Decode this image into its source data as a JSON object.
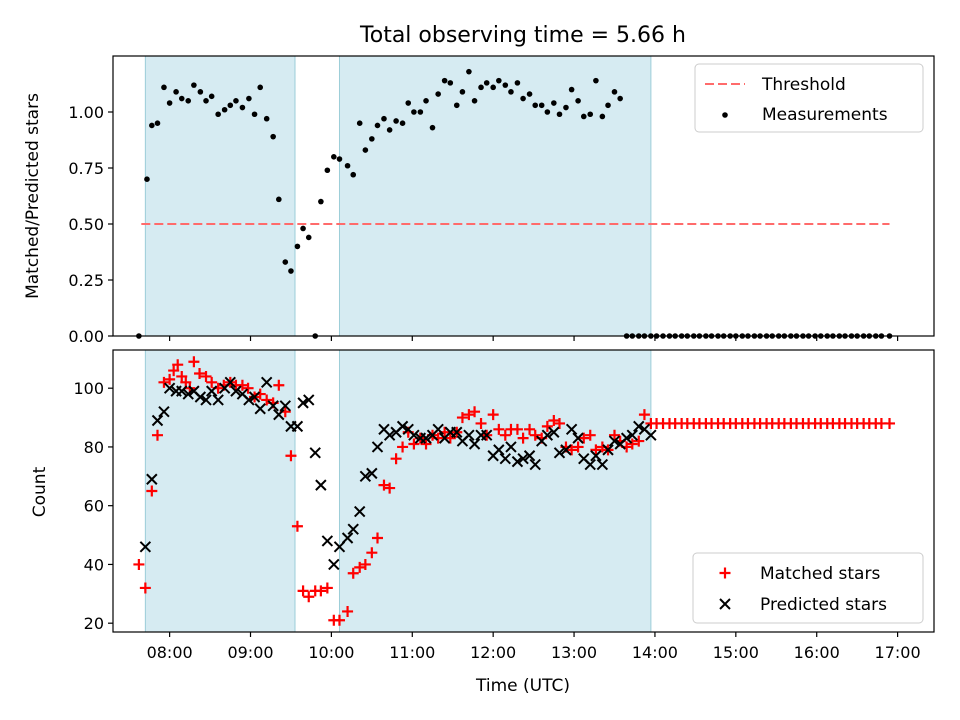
{
  "title": "Total observing time = 5.66 h",
  "chart_data": [
    {
      "type": "scatter",
      "panel": "top",
      "ylabel": "Matched/Predicted stars",
      "ylim": [
        0,
        1.25
      ],
      "yticks": [
        "0.00",
        "0.25",
        "0.50",
        "0.75",
        "1.00"
      ],
      "xlim": [
        7.3,
        17.45
      ],
      "shaded_intervals": [
        [
          7.7,
          9.55
        ],
        [
          10.1,
          13.95
        ]
      ],
      "threshold": {
        "name": "Threshold",
        "y": 0.5,
        "x": [
          7.65,
          16.9
        ],
        "color": "#ff6b6b"
      },
      "series": [
        {
          "name": "Measurements",
          "color": "#000000",
          "x": [
            7.62,
            7.72,
            7.78,
            7.85,
            7.93,
            8.0,
            8.08,
            8.15,
            8.23,
            8.3,
            8.38,
            8.45,
            8.52,
            8.6,
            8.68,
            8.75,
            8.82,
            8.9,
            8.98,
            9.05,
            9.12,
            9.2,
            9.28,
            9.35,
            9.43,
            9.5,
            9.58,
            9.65,
            9.72,
            9.8,
            9.87,
            9.95,
            10.03,
            10.1,
            10.2,
            10.27,
            10.35,
            10.42,
            10.5,
            10.57,
            10.65,
            10.72,
            10.8,
            10.88,
            10.95,
            11.02,
            11.1,
            11.17,
            11.25,
            11.32,
            11.4,
            11.47,
            11.55,
            11.62,
            11.7,
            11.77,
            11.85,
            11.92,
            12.0,
            12.07,
            12.15,
            12.22,
            12.3,
            12.37,
            12.45,
            12.52,
            12.6,
            12.67,
            12.75,
            12.82,
            12.9,
            12.97,
            13.05,
            13.12,
            13.2,
            13.27,
            13.35,
            13.42,
            13.5,
            13.57,
            13.65,
            13.72,
            13.8,
            13.87,
            13.95,
            14.02,
            14.1,
            14.18,
            14.25,
            14.33,
            14.4,
            14.48,
            14.55,
            14.63,
            14.7,
            14.78,
            14.85,
            14.93,
            15.0,
            15.08,
            15.15,
            15.23,
            15.3,
            15.38,
            15.45,
            15.53,
            15.6,
            15.68,
            15.75,
            15.83,
            15.9,
            15.98,
            16.05,
            16.13,
            16.2,
            16.28,
            16.35,
            16.43,
            16.5,
            16.58,
            16.65,
            16.73,
            16.8,
            16.9
          ],
          "y": [
            0.0,
            0.7,
            0.94,
            0.95,
            1.11,
            1.04,
            1.09,
            1.06,
            1.05,
            1.12,
            1.09,
            1.05,
            1.07,
            0.99,
            1.01,
            1.03,
            1.05,
            1.02,
            1.06,
            0.99,
            1.11,
            0.97,
            0.89,
            0.61,
            0.33,
            0.29,
            0.4,
            0.48,
            0.44,
            0.0,
            0.6,
            0.74,
            0.8,
            0.79,
            0.76,
            0.72,
            0.95,
            0.83,
            0.88,
            0.94,
            0.97,
            0.92,
            0.96,
            0.95,
            1.04,
            1.0,
            1.0,
            1.05,
            0.93,
            1.08,
            1.14,
            1.13,
            1.03,
            1.09,
            1.18,
            1.05,
            1.11,
            1.13,
            1.11,
            1.14,
            1.12,
            1.09,
            1.13,
            1.06,
            1.08,
            1.03,
            1.03,
            1.0,
            1.04,
            0.99,
            1.02,
            1.1,
            1.05,
            0.98,
            0.99,
            1.14,
            0.98,
            1.03,
            1.09,
            1.06,
            0.0,
            0.0,
            0.0,
            0.0,
            0.0,
            0.0,
            0.0,
            0.0,
            0.0,
            0.0,
            0.0,
            0.0,
            0.0,
            0.0,
            0.0,
            0.0,
            0.0,
            0.0,
            0.0,
            0.0,
            0.0,
            0.0,
            0.0,
            0.0,
            0.0,
            0.0,
            0.0,
            0.0,
            0.0,
            0.0,
            0.0,
            0.0,
            0.0,
            0.0,
            0.0,
            0.0,
            0.0,
            0.0,
            0.0,
            0.0,
            0.0,
            0.0,
            0.0,
            0.0
          ]
        }
      ],
      "legend": {
        "position": "top-right",
        "entries": [
          "Threshold",
          "Measurements"
        ]
      }
    },
    {
      "type": "scatter",
      "panel": "bottom",
      "ylabel": "Count",
      "xlabel": "Time (UTC)",
      "ylim": [
        17,
        113
      ],
      "yticks": [
        "20",
        "40",
        "60",
        "80",
        "100"
      ],
      "xlim": [
        7.3,
        17.45
      ],
      "xticks": [
        "08:00",
        "09:00",
        "10:00",
        "11:00",
        "12:00",
        "13:00",
        "14:00",
        "15:00",
        "16:00",
        "17:00"
      ],
      "shaded_intervals": [
        [
          7.7,
          9.55
        ],
        [
          10.1,
          13.95
        ]
      ],
      "series": [
        {
          "name": "Matched stars",
          "color": "#ff0000",
          "marker": "plus",
          "x": [
            7.62,
            7.7,
            7.78,
            7.85,
            7.93,
            8.0,
            8.05,
            8.1,
            8.15,
            8.2,
            8.25,
            8.3,
            8.37,
            8.45,
            8.52,
            8.6,
            8.67,
            8.75,
            8.82,
            8.9,
            8.97,
            9.05,
            9.12,
            9.2,
            9.28,
            9.35,
            9.43,
            9.5,
            9.58,
            9.65,
            9.72,
            9.8,
            9.87,
            9.95,
            10.03,
            10.1,
            10.2,
            10.27,
            10.35,
            10.42,
            10.5,
            10.57,
            10.65,
            10.72,
            10.8,
            10.88,
            10.95,
            11.02,
            11.1,
            11.17,
            11.25,
            11.32,
            11.4,
            11.47,
            11.55,
            11.62,
            11.7,
            11.77,
            11.85,
            11.92,
            12.0,
            12.07,
            12.15,
            12.22,
            12.3,
            12.37,
            12.45,
            12.52,
            12.6,
            12.67,
            12.75,
            12.82,
            12.9,
            12.97,
            13.05,
            13.12,
            13.2,
            13.27,
            13.35,
            13.42,
            13.5,
            13.57,
            13.65,
            13.72,
            13.8,
            13.87,
            13.95,
            14.02,
            14.1,
            14.18,
            14.25,
            14.33,
            14.4,
            14.48,
            14.55,
            14.63,
            14.7,
            14.78,
            14.85,
            14.93,
            15.0,
            15.08,
            15.15,
            15.23,
            15.3,
            15.38,
            15.45,
            15.53,
            15.6,
            15.68,
            15.75,
            15.83,
            15.9,
            15.98,
            16.05,
            16.13,
            16.2,
            16.28,
            16.35,
            16.43,
            16.5,
            16.58,
            16.65,
            16.73,
            16.8,
            16.9
          ],
          "y": [
            40,
            32,
            65,
            84,
            102,
            103,
            106,
            108,
            104,
            102,
            100,
            109,
            105,
            104,
            102,
            100,
            101,
            102,
            101,
            101,
            100,
            97,
            98,
            96,
            95,
            101,
            92,
            77,
            53,
            31,
            29,
            31,
            31,
            32,
            21,
            21,
            24,
            37,
            39,
            40,
            44,
            49,
            67,
            66,
            76,
            80,
            85,
            81,
            83,
            81,
            84,
            83,
            85,
            83,
            85,
            90,
            91,
            92,
            88,
            84,
            91,
            86,
            84,
            86,
            86,
            83,
            86,
            84,
            83,
            87,
            89,
            88,
            80,
            79,
            80,
            83,
            84,
            79,
            80,
            79,
            84,
            82,
            80,
            81,
            82,
            91,
            88,
            88,
            88,
            88,
            88,
            88,
            88,
            88,
            88,
            88,
            88,
            88,
            88,
            88,
            88,
            88,
            88,
            88,
            88,
            88,
            88,
            88,
            88,
            88,
            88,
            88,
            88,
            88,
            88,
            88,
            88,
            88,
            88,
            88,
            88,
            88,
            88,
            88,
            88,
            88
          ]
        },
        {
          "name": "Predicted stars",
          "color": "#000000",
          "marker": "x",
          "x": [
            7.7,
            7.78,
            7.85,
            7.93,
            8.0,
            8.08,
            8.15,
            8.23,
            8.3,
            8.38,
            8.45,
            8.52,
            8.6,
            8.68,
            8.75,
            8.82,
            8.9,
            8.98,
            9.05,
            9.12,
            9.2,
            9.28,
            9.35,
            9.43,
            9.5,
            9.58,
            9.65,
            9.72,
            9.8,
            9.87,
            9.95,
            10.03,
            10.1,
            10.2,
            10.27,
            10.35,
            10.42,
            10.5,
            10.57,
            10.65,
            10.72,
            10.8,
            10.88,
            10.95,
            11.02,
            11.1,
            11.17,
            11.25,
            11.32,
            11.4,
            11.47,
            11.55,
            11.62,
            11.7,
            11.77,
            11.85,
            11.92,
            12.0,
            12.07,
            12.15,
            12.22,
            12.3,
            12.37,
            12.45,
            12.52,
            12.6,
            12.67,
            12.75,
            12.82,
            12.9,
            12.97,
            13.05,
            13.12,
            13.2,
            13.27,
            13.35,
            13.42,
            13.5,
            13.57,
            13.65,
            13.72,
            13.8,
            13.87,
            13.95
          ],
          "y": [
            46,
            69,
            89,
            92,
            100,
            99,
            99,
            98,
            99,
            97,
            96,
            99,
            96,
            100,
            102,
            99,
            98,
            96,
            97,
            93,
            102,
            94,
            91,
            94,
            87,
            87,
            95,
            96,
            78,
            67,
            48,
            40,
            46,
            49,
            52,
            58,
            70,
            71,
            80,
            86,
            84,
            85,
            87,
            86,
            84,
            83,
            83,
            84,
            86,
            83,
            85,
            85,
            82,
            84,
            81,
            84,
            84,
            77,
            79,
            76,
            80,
            75,
            76,
            77,
            74,
            82,
            84,
            85,
            78,
            79,
            86,
            83,
            76,
            74,
            77,
            74,
            79,
            82,
            81,
            83,
            84,
            87,
            86,
            84
          ],
          "note_x_sparse": "last point near 13.95"
        }
      ],
      "legend": {
        "position": "bottom-right",
        "entries": [
          "Matched stars",
          "Predicted stars"
        ]
      }
    }
  ]
}
